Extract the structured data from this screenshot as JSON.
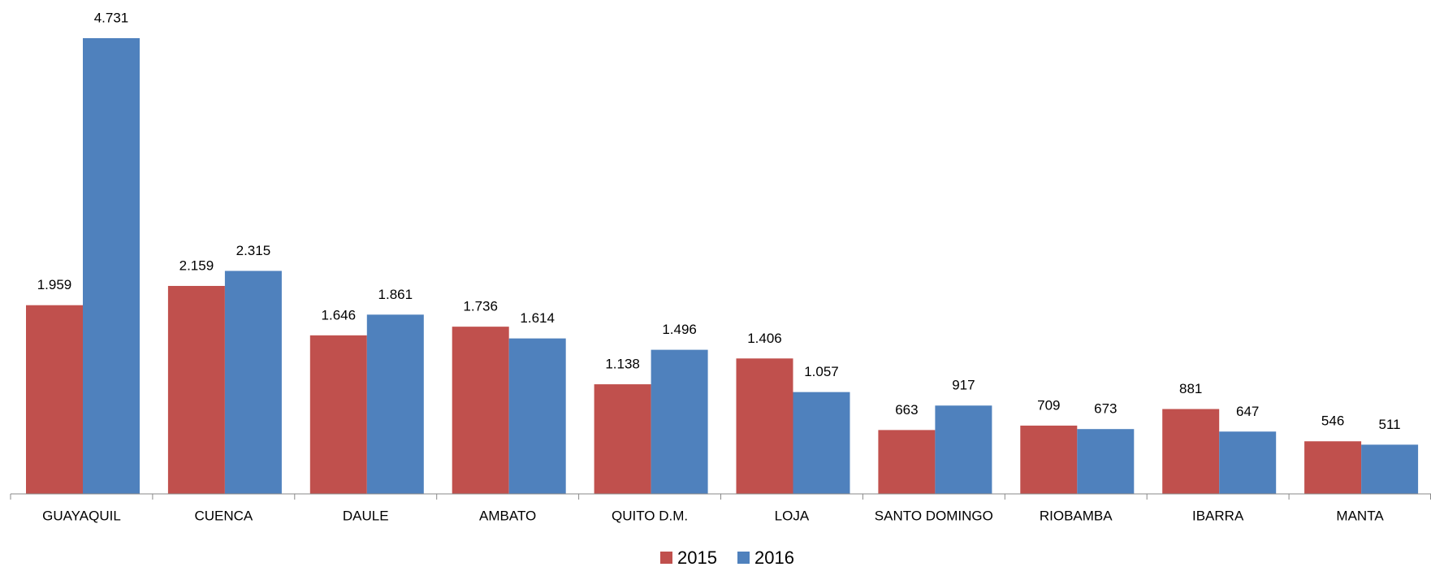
{
  "chart_data": {
    "type": "bar",
    "categories": [
      "GUAYAQUIL",
      "CUENCA",
      "DAULE",
      "AMBATO",
      "QUITO D.M.",
      "LOJA",
      "SANTO DOMINGO",
      "RIOBAMBA",
      "IBARRA",
      "MANTA"
    ],
    "series": [
      {
        "name": "2015",
        "color": "#c0504d",
        "values": [
          1959,
          2159,
          1646,
          1736,
          1138,
          1406,
          663,
          709,
          881,
          546
        ],
        "value_labels": [
          "1.959",
          "2.159",
          "1.646",
          "1.736",
          "1.138",
          "1.406",
          "663",
          "709",
          "881",
          "546"
        ]
      },
      {
        "name": "2016",
        "color": "#4f81bd",
        "values": [
          4731,
          2315,
          1861,
          1614,
          1496,
          1057,
          917,
          673,
          647,
          511
        ],
        "value_labels": [
          "4.731",
          "2.315",
          "1.861",
          "1.614",
          "1.496",
          "1.057",
          "917",
          "673",
          "647",
          "511"
        ]
      }
    ],
    "legend": "bottom"
  }
}
